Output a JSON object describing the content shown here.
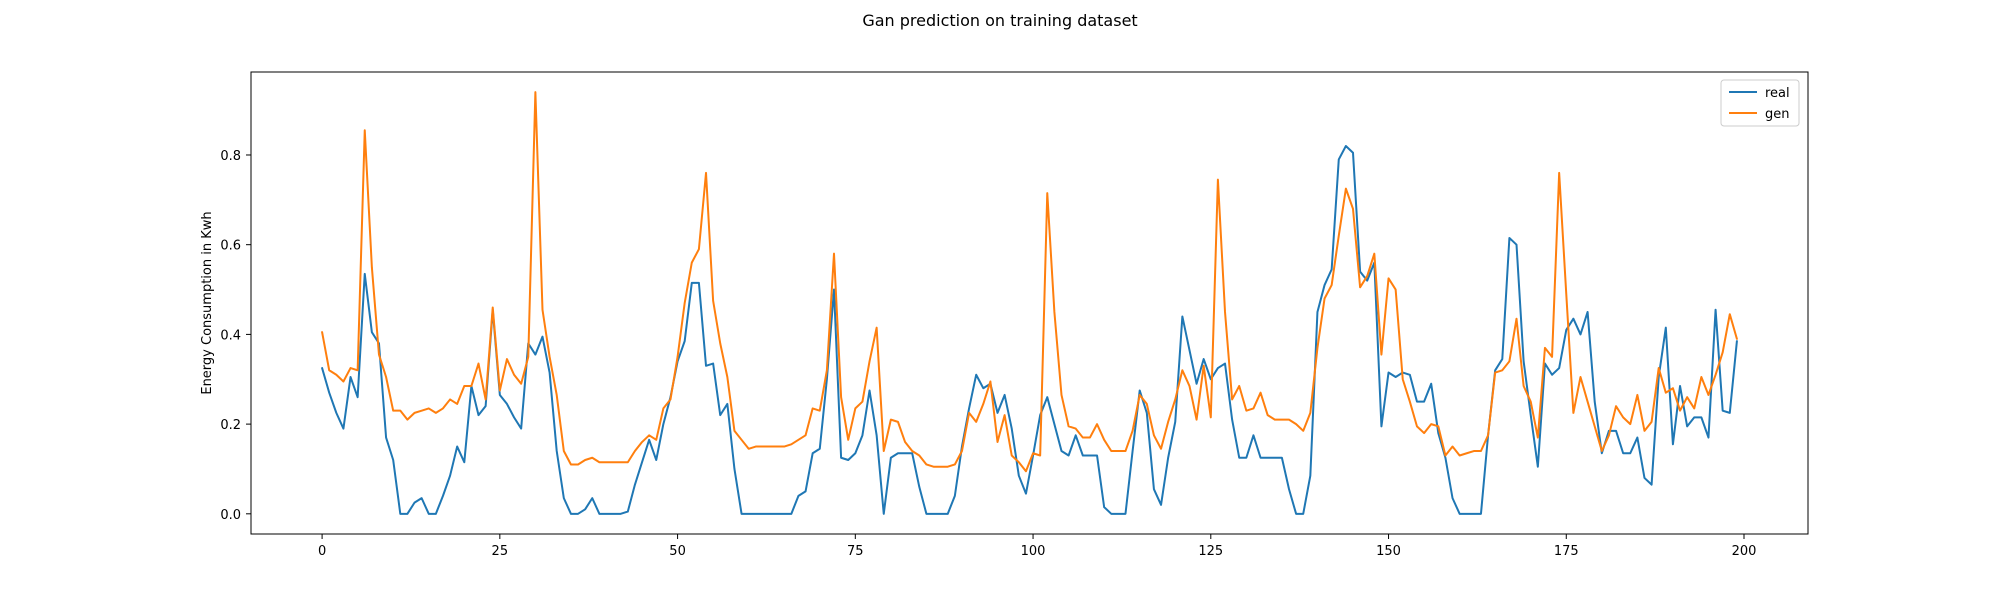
{
  "chart_data": {
    "type": "line",
    "title": "Gan prediction on training dataset",
    "xlabel": "",
    "ylabel": "Energy Consumption in Kwh",
    "xlim": [
      -10,
      209
    ],
    "ylim": [
      -0.045,
      0.985
    ],
    "x_ticks": [
      0,
      25,
      50,
      75,
      100,
      125,
      150,
      175,
      200
    ],
    "x_tick_labels": [
      "0",
      "25",
      "50",
      "75",
      "100",
      "125",
      "150",
      "175",
      "200"
    ],
    "y_ticks": [
      0.0,
      0.2,
      0.4,
      0.6,
      0.8
    ],
    "y_tick_labels": [
      "0.0",
      "0.2",
      "0.4",
      "0.6",
      "0.8"
    ],
    "grid": false,
    "legend_position": "top-right",
    "series": [
      {
        "name": "real",
        "color": "#1f77b4",
        "values": [
          0.325,
          0.27,
          0.225,
          0.19,
          0.305,
          0.26,
          0.535,
          0.405,
          0.38,
          0.17,
          0.12,
          0.0,
          0.0,
          0.025,
          0.035,
          0.0,
          0.0,
          0.04,
          0.085,
          0.15,
          0.115,
          0.285,
          0.22,
          0.24,
          0.455,
          0.265,
          0.245,
          0.215,
          0.19,
          0.38,
          0.355,
          0.395,
          0.315,
          0.14,
          0.035,
          0.0,
          0.0,
          0.01,
          0.035,
          0.0,
          0.0,
          0.0,
          0.0,
          0.005,
          0.065,
          0.115,
          0.165,
          0.12,
          0.2,
          0.26,
          0.34,
          0.385,
          0.515,
          0.515,
          0.33,
          0.335,
          0.22,
          0.245,
          0.1,
          0.0,
          0.0,
          0.0,
          0.0,
          0.0,
          0.0,
          0.0,
          0.0,
          0.04,
          0.05,
          0.135,
          0.145,
          0.3,
          0.5,
          0.125,
          0.12,
          0.135,
          0.175,
          0.275,
          0.175,
          0.0,
          0.125,
          0.135,
          0.135,
          0.135,
          0.06,
          0.0,
          0.0,
          0.0,
          0.0,
          0.04,
          0.15,
          0.235,
          0.31,
          0.28,
          0.29,
          0.225,
          0.265,
          0.19,
          0.085,
          0.045,
          0.13,
          0.22,
          0.26,
          0.2,
          0.14,
          0.13,
          0.175,
          0.13,
          0.13,
          0.13,
          0.015,
          0.0,
          0.0,
          0.0,
          0.14,
          0.275,
          0.225,
          0.055,
          0.02,
          0.125,
          0.205,
          0.44,
          0.365,
          0.29,
          0.345,
          0.3,
          0.325,
          0.335,
          0.21,
          0.125,
          0.125,
          0.175,
          0.125,
          0.125,
          0.125,
          0.125,
          0.055,
          0.0,
          0.0,
          0.085,
          0.45,
          0.51,
          0.545,
          0.79,
          0.82,
          0.805,
          0.54,
          0.52,
          0.56,
          0.195,
          0.315,
          0.305,
          0.315,
          0.31,
          0.25,
          0.25,
          0.29,
          0.18,
          0.125,
          0.035,
          0.0,
          0.0,
          0.0,
          0.0,
          0.175,
          0.32,
          0.345,
          0.615,
          0.6,
          0.34,
          0.22,
          0.105,
          0.335,
          0.31,
          0.325,
          0.41,
          0.435,
          0.4,
          0.45,
          0.25,
          0.135,
          0.185,
          0.185,
          0.135,
          0.135,
          0.17,
          0.08,
          0.065,
          0.305,
          0.415,
          0.155,
          0.285,
          0.195,
          0.215,
          0.215,
          0.17,
          0.455,
          0.23,
          0.225,
          0.385
        ]
      },
      {
        "name": "gen",
        "color": "#ff7f0e",
        "values": [
          0.405,
          0.32,
          0.31,
          0.295,
          0.325,
          0.32,
          0.855,
          0.55,
          0.355,
          0.305,
          0.23,
          0.23,
          0.21,
          0.225,
          0.23,
          0.235,
          0.225,
          0.235,
          0.255,
          0.245,
          0.285,
          0.285,
          0.335,
          0.255,
          0.46,
          0.275,
          0.345,
          0.31,
          0.29,
          0.35,
          0.94,
          0.455,
          0.35,
          0.265,
          0.14,
          0.11,
          0.11,
          0.12,
          0.125,
          0.115,
          0.115,
          0.115,
          0.115,
          0.115,
          0.14,
          0.16,
          0.175,
          0.165,
          0.235,
          0.255,
          0.35,
          0.47,
          0.56,
          0.59,
          0.76,
          0.475,
          0.38,
          0.305,
          0.185,
          0.165,
          0.145,
          0.15,
          0.15,
          0.15,
          0.15,
          0.15,
          0.155,
          0.165,
          0.175,
          0.235,
          0.23,
          0.32,
          0.58,
          0.26,
          0.165,
          0.235,
          0.25,
          0.34,
          0.415,
          0.14,
          0.21,
          0.205,
          0.16,
          0.14,
          0.13,
          0.11,
          0.105,
          0.105,
          0.105,
          0.11,
          0.14,
          0.225,
          0.205,
          0.245,
          0.295,
          0.16,
          0.22,
          0.13,
          0.115,
          0.095,
          0.135,
          0.13,
          0.715,
          0.45,
          0.265,
          0.195,
          0.19,
          0.17,
          0.17,
          0.2,
          0.165,
          0.14,
          0.14,
          0.14,
          0.185,
          0.265,
          0.245,
          0.175,
          0.145,
          0.205,
          0.255,
          0.32,
          0.285,
          0.21,
          0.33,
          0.215,
          0.745,
          0.45,
          0.255,
          0.285,
          0.23,
          0.235,
          0.27,
          0.22,
          0.21,
          0.21,
          0.21,
          0.2,
          0.185,
          0.225,
          0.37,
          0.48,
          0.51,
          0.62,
          0.725,
          0.68,
          0.505,
          0.53,
          0.58,
          0.355,
          0.525,
          0.5,
          0.3,
          0.25,
          0.195,
          0.18,
          0.2,
          0.195,
          0.13,
          0.15,
          0.13,
          0.135,
          0.14,
          0.14,
          0.175,
          0.315,
          0.32,
          0.34,
          0.435,
          0.285,
          0.25,
          0.17,
          0.37,
          0.35,
          0.76,
          0.49,
          0.225,
          0.305,
          0.25,
          0.195,
          0.14,
          0.175,
          0.24,
          0.215,
          0.2,
          0.265,
          0.185,
          0.205,
          0.325,
          0.27,
          0.28,
          0.23,
          0.26,
          0.235,
          0.305,
          0.265,
          0.31,
          0.36,
          0.445,
          0.39
        ]
      }
    ]
  }
}
